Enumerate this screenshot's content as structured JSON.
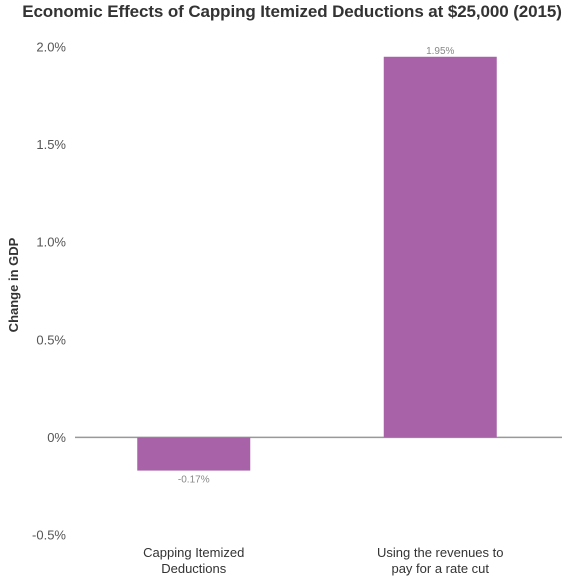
{
  "chart_data": {
    "type": "bar",
    "title": "Economic Effects of Capping Itemized Deductions at $25,000 (2015)",
    "xlabel": "",
    "ylabel": "Change in GDP",
    "categories": [
      [
        "Capping Itemized",
        "Deductions"
      ],
      [
        "Using the revenues to",
        "pay for a rate cut"
      ]
    ],
    "values": [
      -0.0017,
      0.0195
    ],
    "data_labels": [
      "-0.17%",
      "1.95%"
    ],
    "ylim": [
      -0.005,
      0.02
    ],
    "yticks": [
      -0.005,
      0,
      0.005,
      0.01,
      0.015,
      0.02
    ],
    "ytick_labels": [
      "-0.5%",
      "0%",
      "0.5%",
      "1.0%",
      "1.5%",
      "2.0%"
    ],
    "bar_color": "#a862a8",
    "grid": false,
    "legend": "none"
  }
}
